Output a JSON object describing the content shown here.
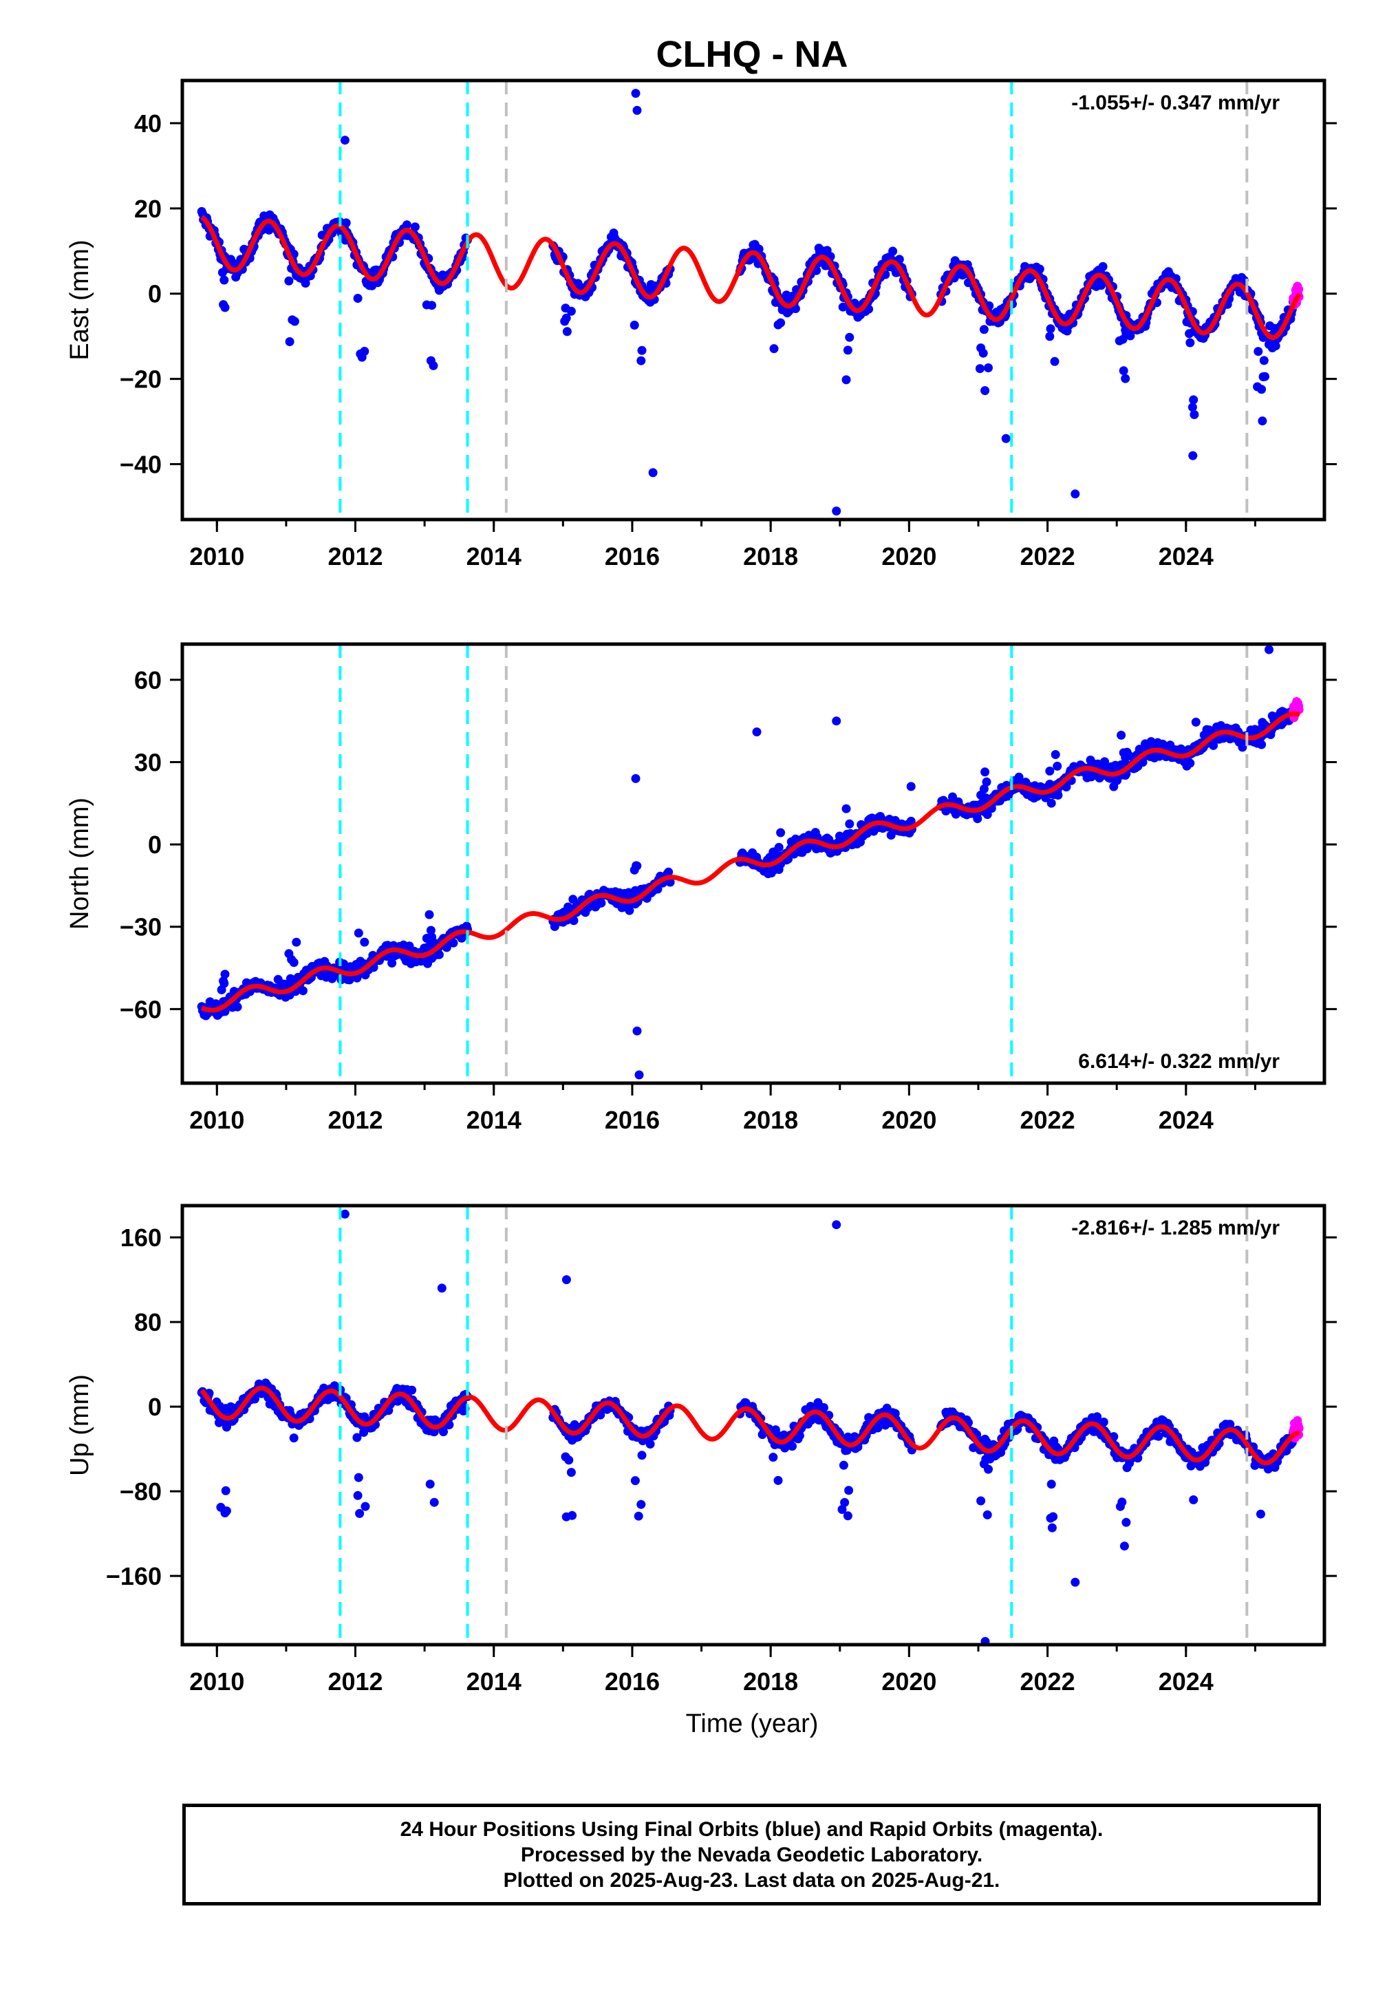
{
  "chart_data": {
    "type": "scatter",
    "title": "CLHQ - NA",
    "xlabel": "Time (year)",
    "x_ticks": [
      "2010",
      "2012",
      "2014",
      "2016",
      "2018",
      "2020",
      "2022",
      "2024"
    ],
    "xlim": [
      2009.5,
      2026.0
    ],
    "vertical_lines": [
      {
        "x": 2011.78,
        "color": "#00ffff"
      },
      {
        "x": 2013.62,
        "color": "#00ffff"
      },
      {
        "x": 2014.18,
        "color": "#c0c0c0"
      },
      {
        "x": 2021.48,
        "color": "#00ffff"
      },
      {
        "x": 2024.88,
        "color": "#c0c0c0"
      }
    ],
    "colors": {
      "final": "#0000ff",
      "rapid": "#ff00ff",
      "model": "#ff0000"
    },
    "panels": [
      {
        "component": "east",
        "ylabel": "East (mm)",
        "ylim": [
          -53,
          50
        ],
        "y_ticks": [
          40,
          20,
          0,
          -20,
          -40
        ],
        "rate": "-1.055+/- 0.347 mm/yr",
        "rate_position": "top-right",
        "model": {
          "trend_mm_per_yr": -1.055,
          "offset_mm": 12,
          "amplitude_mm": 6,
          "phase_peak": 0.75
        },
        "outliers": [
          [
            2011.85,
            36
          ],
          [
            2016.05,
            47
          ],
          [
            2016.07,
            43
          ],
          [
            2016.3,
            -42
          ],
          [
            2018.95,
            -51
          ],
          [
            2022.4,
            -47
          ],
          [
            2021.4,
            -34
          ],
          [
            2024.1,
            -38
          ]
        ]
      },
      {
        "component": "north",
        "ylabel": "North (mm)",
        "ylim": [
          -87,
          73
        ],
        "y_ticks": [
          60,
          30,
          0,
          -30,
          -60
        ],
        "rate": "6.614+/- 0.322 mm/yr",
        "rate_position": "bottom-right",
        "model": {
          "trend_mm_per_yr": 6.614,
          "offset_mm": -59,
          "amplitude_mm": 2.5,
          "phase_peak": 0.5
        },
        "outliers": [
          [
            2016.1,
            -84
          ],
          [
            2016.05,
            24
          ],
          [
            2018.95,
            45
          ],
          [
            2025.2,
            71
          ],
          [
            2016.07,
            -68
          ],
          [
            2017.8,
            41
          ]
        ]
      },
      {
        "component": "up",
        "ylabel": "Up (mm)",
        "ylim": [
          -225,
          190
        ],
        "y_ticks": [
          160,
          80,
          0,
          -80,
          -160
        ],
        "rate": "-2.816+/- 1.285 mm/yr",
        "rate_position": "top-right",
        "model": {
          "trend_mm_per_yr": -2.816,
          "offset_mm": 5,
          "amplitude_mm": 15,
          "phase_peak": 0.65
        },
        "outliers": [
          [
            2011.85,
            182
          ],
          [
            2018.95,
            172
          ],
          [
            2021.1,
            -222
          ],
          [
            2015.05,
            120
          ],
          [
            2013.25,
            112
          ],
          [
            2022.4,
            -166
          ]
        ]
      }
    ],
    "rapid_orbits_start": 2025.55,
    "last_data": 2025.64
  },
  "footer": {
    "line1": "24 Hour Positions Using Final Orbits (blue) and Rapid Orbits (magenta).",
    "line2": "Processed by the Nevada Geodetic Laboratory.",
    "line3": "Plotted on 2025-Aug-23. Last data on 2025-Aug-21."
  }
}
